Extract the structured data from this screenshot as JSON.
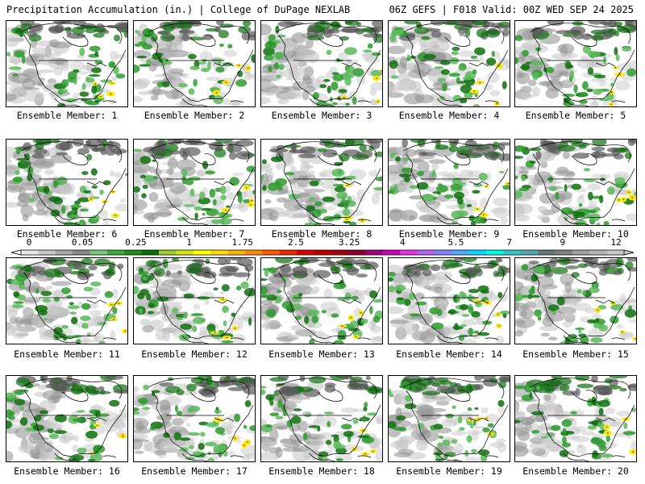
{
  "header": {
    "left": "Precipitation Accumulation (in.) | College of DuPage NEXLAB",
    "right": "06Z GEFS | F018 Valid: 00Z WED SEP 24 2025"
  },
  "panels": [
    {
      "label": "Ensemble Member: 1"
    },
    {
      "label": "Ensemble Member: 2"
    },
    {
      "label": "Ensemble Member: 3"
    },
    {
      "label": "Ensemble Member: 4"
    },
    {
      "label": "Ensemble Member: 5"
    },
    {
      "label": "Ensemble Member: 6"
    },
    {
      "label": "Ensemble Member: 7"
    },
    {
      "label": "Ensemble Member: 8"
    },
    {
      "label": "Ensemble Member: 9"
    },
    {
      "label": "Ensemble Member: 10"
    },
    {
      "label": "Ensemble Member: 11"
    },
    {
      "label": "Ensemble Member: 12"
    },
    {
      "label": "Ensemble Member: 13"
    },
    {
      "label": "Ensemble Member: 14"
    },
    {
      "label": "Ensemble Member: 15"
    },
    {
      "label": "Ensemble Member: 16"
    },
    {
      "label": "Ensemble Member: 17"
    },
    {
      "label": "Ensemble Member: 18"
    },
    {
      "label": "Ensemble Member: 19"
    },
    {
      "label": "Ensemble Member: 20"
    }
  ],
  "colorbar": {
    "tick_labels": [
      "0",
      "0.05",
      "0.25",
      "1",
      "1.75",
      "2.5",
      "3.25",
      "4",
      "5.5",
      "7",
      "9",
      "12"
    ],
    "colors": [
      "#e8e8e8",
      "#c8c8c8",
      "#a8a8a8",
      "#888888",
      "#78c878",
      "#3caa3c",
      "#1e8c1e",
      "#0a6e0a",
      "#9ccc28",
      "#d2e614",
      "#ffff00",
      "#ffdc00",
      "#ffb400",
      "#ff8c00",
      "#ff5a00",
      "#f02800",
      "#dc0000",
      "#be0000",
      "#a00014",
      "#8c0032",
      "#a00078",
      "#c800b4",
      "#e632e6",
      "#b464f0",
      "#8282ff",
      "#50aaff",
      "#00dcff",
      "#00ffe6",
      "#32c8c8",
      "#50aaaa",
      "#647878",
      "#828282",
      "#a0a0a0",
      "#b4b4b4",
      "#c8c8c8"
    ]
  },
  "map_colors": {
    "land": "#ffffff",
    "light_gray": "#c8c8c8",
    "mid_gray": "#969696",
    "dark_gray": "#5a5a5a",
    "light_green": "#5cb85c",
    "green": "#2e9a2e",
    "dark_green": "#0f6e0f",
    "yellow": "#f0f000",
    "red": "#e62020",
    "lines": "#000000"
  }
}
